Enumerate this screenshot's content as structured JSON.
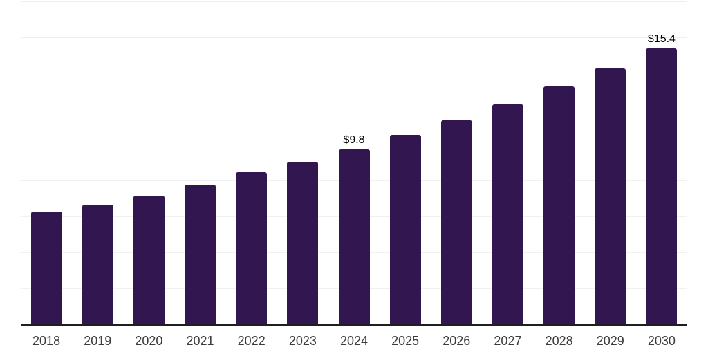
{
  "chart_data": {
    "type": "bar",
    "title": "",
    "xlabel": "",
    "ylabel": "",
    "categories": [
      "2018",
      "2019",
      "2020",
      "2021",
      "2022",
      "2023",
      "2024",
      "2025",
      "2026",
      "2027",
      "2028",
      "2029",
      "2030"
    ],
    "values": [
      6.3,
      6.7,
      7.2,
      7.8,
      8.5,
      9.1,
      9.8,
      10.6,
      11.4,
      12.3,
      13.3,
      14.3,
      15.4
    ],
    "data_labels": [
      "",
      "",
      "",
      "",
      "",
      "",
      "$9.8",
      "",
      "",
      "",
      "",
      "",
      "$15.4"
    ],
    "ylim": [
      0,
      18.1
    ],
    "gridline_step": 2,
    "grid": "horizontal",
    "y_axis_labels": "none",
    "legend_position": "none",
    "colors": {
      "bar": "#321650",
      "gridline": "#f0f0f2",
      "axis": "#1f1f1f",
      "tick_label": "#3c3c3c",
      "data_label": "#000000",
      "background": "#ffffff"
    }
  }
}
